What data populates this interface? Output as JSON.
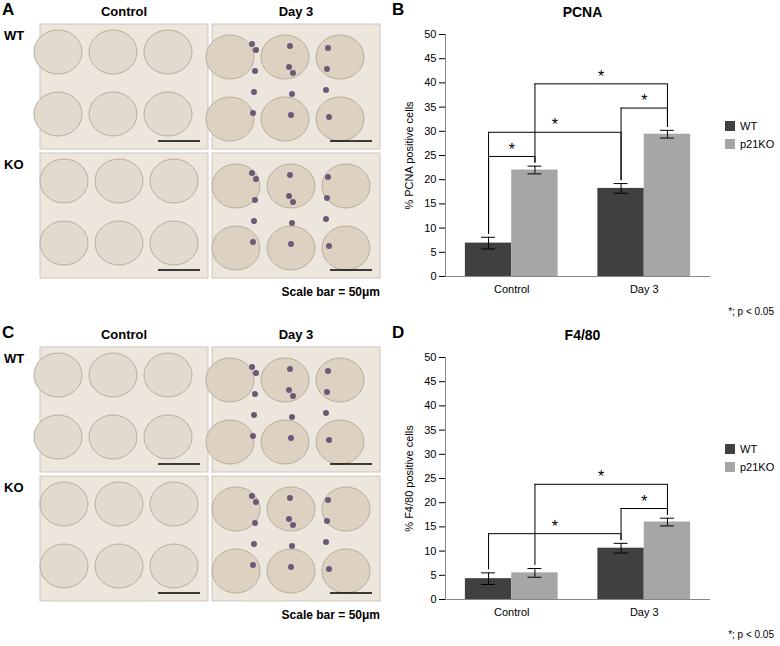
{
  "image_panels": [
    {
      "panel": "A",
      "columns": [
        "Control",
        "Day 3"
      ],
      "rows": [
        "WT",
        "KO"
      ],
      "scale_bar": "Scale bar = 50μm"
    },
    {
      "panel": "C",
      "columns": [
        "Control",
        "Day 3"
      ],
      "rows": [
        "WT",
        "KO"
      ],
      "scale_bar": "Scale bar = 50μm"
    }
  ],
  "chart_data": [
    {
      "type": "bar",
      "panel": "B",
      "title": "PCNA",
      "ylabel": "% PCNA positive cells",
      "categories": [
        "Control",
        "Day 3"
      ],
      "series": [
        {
          "name": "WT",
          "color": "#404040",
          "values": [
            6.9,
            18.2
          ],
          "errors": [
            1.2,
            1.0
          ]
        },
        {
          "name": "p21KO",
          "color": "#a6a6a6",
          "values": [
            22.0,
            29.4
          ],
          "errors": [
            0.8,
            0.8
          ]
        }
      ],
      "ylim": [
        0,
        50
      ],
      "yticks": [
        0,
        5,
        10,
        15,
        20,
        25,
        30,
        35,
        40,
        45,
        50
      ],
      "legend": "right",
      "significance": [
        {
          "from": {
            "category": "Control",
            "series": "WT"
          },
          "to": {
            "category": "Control",
            "series": "p21KO"
          },
          "label": "*"
        },
        {
          "from": {
            "category": "Control",
            "series": "WT"
          },
          "to": {
            "category": "Day 3",
            "series": "WT"
          },
          "label": "*"
        },
        {
          "from": {
            "category": "Day 3",
            "series": "WT"
          },
          "to": {
            "category": "Day 3",
            "series": "p21KO"
          },
          "label": "*"
        },
        {
          "from": {
            "category": "Control",
            "series": "p21KO"
          },
          "to": {
            "category": "Day 3",
            "series": "p21KO"
          },
          "label": "*"
        }
      ],
      "footnote": "*; p < 0.05"
    },
    {
      "type": "bar",
      "panel": "D",
      "title": "F4/80",
      "ylabel": "% F4/80 positive cells",
      "categories": [
        "Control",
        "Day 3"
      ],
      "series": [
        {
          "name": "WT",
          "color": "#404040",
          "values": [
            4.3,
            10.6
          ],
          "errors": [
            1.2,
            1.0
          ]
        },
        {
          "name": "p21KO",
          "color": "#a6a6a6",
          "values": [
            5.5,
            16.0
          ],
          "errors": [
            0.9,
            0.8
          ]
        }
      ],
      "ylim": [
        0,
        50
      ],
      "yticks": [
        0,
        5,
        10,
        15,
        20,
        25,
        30,
        35,
        40,
        45,
        50
      ],
      "legend": "right",
      "significance": [
        {
          "from": {
            "category": "Control",
            "series": "WT"
          },
          "to": {
            "category": "Day 3",
            "series": "WT"
          },
          "label": "*"
        },
        {
          "from": {
            "category": "Day 3",
            "series": "WT"
          },
          "to": {
            "category": "Day 3",
            "series": "p21KO"
          },
          "label": "*"
        },
        {
          "from": {
            "category": "Control",
            "series": "p21KO"
          },
          "to": {
            "category": "Day 3",
            "series": "p21KO"
          },
          "label": "*"
        }
      ],
      "footnote": "*; p < 0.05"
    }
  ]
}
